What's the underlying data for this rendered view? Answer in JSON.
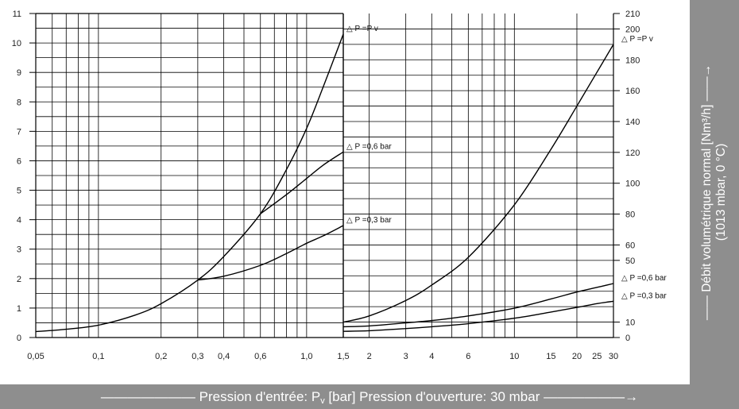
{
  "chart_data": [
    {
      "panel": "left",
      "type": "line",
      "x_scale": "log",
      "y_scale": "linear",
      "xlim": [
        0.05,
        1.5
      ],
      "ylim": [
        0,
        11
      ],
      "grid": true,
      "xticks": [
        0.05,
        0.1,
        0.2,
        0.3,
        0.4,
        0.6,
        1.0,
        1.5
      ],
      "xtick_labels": [
        "0,05",
        "0,1",
        "0,2",
        "0,3",
        "0,4",
        "0,6",
        "1,0",
        "1,5"
      ],
      "yticks": [
        0,
        1,
        2,
        3,
        4,
        5,
        6,
        7,
        8,
        9,
        10,
        11
      ],
      "ytick_labels": [
        "0",
        "1",
        "2",
        "3",
        "4",
        "5",
        "6",
        "7",
        "8",
        "9",
        "10",
        "11"
      ],
      "series": [
        {
          "name": "△ P =P v",
          "x": [
            0.05,
            0.07,
            0.1,
            0.15,
            0.2,
            0.3,
            0.4,
            0.6,
            0.8,
            1.0,
            1.2,
            1.5
          ],
          "y": [
            0.2,
            0.28,
            0.42,
            0.76,
            1.15,
            1.95,
            2.75,
            4.2,
            5.7,
            7.1,
            8.5,
            10.3
          ]
        },
        {
          "name": "△ P =0,6 bar",
          "x": [
            0.6,
            0.8,
            1.0,
            1.2,
            1.5
          ],
          "y": [
            4.2,
            4.85,
            5.4,
            5.85,
            6.3
          ]
        },
        {
          "name": "△ P =0,3 bar",
          "x": [
            0.3,
            0.4,
            0.6,
            0.8,
            1.0,
            1.2,
            1.5
          ],
          "y": [
            1.95,
            2.08,
            2.45,
            2.85,
            3.2,
            3.45,
            3.8
          ]
        }
      ]
    },
    {
      "panel": "right",
      "type": "line",
      "x_scale": "log",
      "y_scale": "linear",
      "xlim": [
        1.5,
        30
      ],
      "ylim": [
        0,
        210
      ],
      "grid": true,
      "xticks": [
        2,
        3,
        4,
        6,
        10,
        15,
        20,
        25,
        30
      ],
      "xtick_labels": [
        "2",
        "3",
        "4",
        "6",
        "10",
        "15",
        "20",
        "25",
        "30"
      ],
      "yticks": [
        0,
        10,
        50,
        60,
        80,
        100,
        120,
        140,
        160,
        180,
        200,
        210
      ],
      "ytick_labels": [
        "0",
        "10",
        "50",
        "60",
        "80",
        "100",
        "120",
        "140",
        "160",
        "180",
        "200",
        "210"
      ],
      "series": [
        {
          "name": "△ P =P v",
          "x": [
            1.5,
            2,
            3,
            4,
            6,
            10,
            15,
            20,
            25,
            30
          ],
          "y": [
            10,
            14,
            24,
            34,
            52,
            86,
            122,
            150,
            172,
            190
          ]
        },
        {
          "name": "△ P =0,6 bar",
          "x": [
            1.5,
            2,
            3,
            4,
            6,
            10,
            15,
            20,
            25,
            30
          ],
          "y": [
            7,
            7.5,
            9.5,
            11,
            14,
            19,
            25,
            29.5,
            32.5,
            35
          ]
        },
        {
          "name": "△ P =0,3 bar",
          "x": [
            1.5,
            2,
            3,
            4,
            6,
            10,
            15,
            20,
            25,
            30
          ],
          "y": [
            4,
            4.4,
            5.8,
            7,
            9,
            12.5,
            16.5,
            19.5,
            22,
            23.5
          ]
        }
      ]
    }
  ],
  "labels": {
    "y_axis_title_line1": "Débit volumétrique normal [Nm³/h]",
    "y_axis_title_line2": "(1013 mbar, 0 °C)",
    "x_axis_title_before": "Pression d'entrée:  P",
    "x_axis_title_sub": "v",
    "x_axis_title_after": " [bar] Pression d'ouverture: 30 mbar"
  },
  "colors": {
    "band": "#8e8e8e",
    "band_text": "#ffffff",
    "lines": "#000000"
  }
}
